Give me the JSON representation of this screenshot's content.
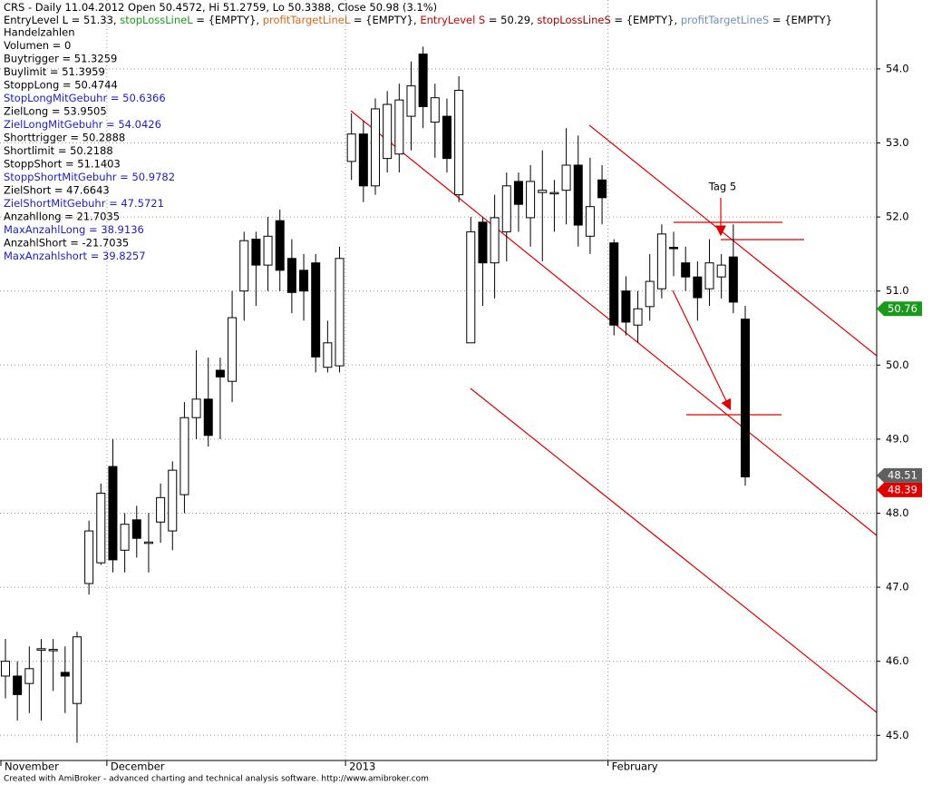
{
  "chart_data": {
    "type": "candlestick",
    "title_segments": [
      {
        "text": "CRS - Daily 11.04.2012 Open 50.4572, Hi 51.2759, Lo 50.3388, Close 50.98 (3.1%)",
        "color": "#000000"
      }
    ],
    "subtitle_segments": [
      {
        "text": "EntryLevel L = 51.33, ",
        "color": "#000000"
      },
      {
        "text": "stopLossLineL",
        "color": "#1a9a1a"
      },
      {
        "text": " = {EMPTY}, ",
        "color": "#000000"
      },
      {
        "text": "profitTargetLineL",
        "color": "#d2691e"
      },
      {
        "text": " = {EMPTY}, ",
        "color": "#000000"
      },
      {
        "text": "EntryLevel S",
        "color": "#cc0000"
      },
      {
        "text": " = 50.29, ",
        "color": "#000000"
      },
      {
        "text": "stopLossLineS",
        "color": "#a00000"
      },
      {
        "text": " = {EMPTY}, ",
        "color": "#000000"
      },
      {
        "text": "profitTargetLineS",
        "color": "#6f8fb8"
      },
      {
        "text": " = {EMPTY}",
        "color": "#000000"
      }
    ],
    "info_lines": [
      {
        "text": "Handelzahlen",
        "color": "#000000"
      },
      {
        "text": "Volumen = 0",
        "color": "#000000"
      },
      {
        "text": "Buytrigger = 51.3259",
        "color": "#000000"
      },
      {
        "text": "Buylimit = 51.3959",
        "color": "#000000"
      },
      {
        "text": "StoppLong = 50.4744",
        "color": "#000000"
      },
      {
        "text": "StopLongMitGebuhr = 50.6366",
        "color": "#1c1cc8"
      },
      {
        "text": "ZielLong = 53.9505",
        "color": "#000000"
      },
      {
        "text": "ZielLongMitGebuhr = 54.0426",
        "color": "#1c1cc8"
      },
      {
        "text": "Shorttrigger = 50.2888",
        "color": "#000000"
      },
      {
        "text": "Shortlimit = 50.2188",
        "color": "#000000"
      },
      {
        "text": "StoppShort = 51.1403",
        "color": "#000000"
      },
      {
        "text": "StoppShortMitGebuhr = 50.9782",
        "color": "#1c1cc8"
      },
      {
        "text": "ZielShort = 47.6643",
        "color": "#000000"
      },
      {
        "text": "ZielShortMitGebuhr = 47.5721",
        "color": "#1c1cc8"
      },
      {
        "text": "Anzahllong = 21.7035",
        "color": "#000000"
      },
      {
        "text": "MaxAnzahlLong = 38.9136",
        "color": "#1c1cc8"
      },
      {
        "text": "AnzahlShort = -21.7035",
        "color": "#000000"
      },
      {
        "text": "MaxAnzahlshort = 39.8257",
        "color": "#1c1cc8"
      }
    ],
    "annotation": "Tag 5",
    "footer": "Created with AmiBroker - advanced charting and technical analysis software. http://www.amibroker.com",
    "categories": [
      "November",
      null,
      null,
      null,
      null,
      null,
      null,
      null,
      null,
      "December",
      null,
      null,
      null,
      null,
      null,
      null,
      null,
      null,
      null,
      null,
      null,
      null,
      null,
      null,
      null,
      null,
      null,
      null,
      null,
      "2013",
      null,
      null,
      null,
      null,
      null,
      null,
      null,
      null,
      null,
      null,
      null,
      null,
      null,
      null,
      null,
      null,
      null,
      null,
      null,
      null,
      null,
      "February",
      null,
      null,
      null,
      null,
      null,
      null,
      null,
      null,
      null,
      null,
      null
    ],
    "open": [
      45.8,
      45.8,
      45.7,
      46.15,
      46.16,
      45.85,
      45.43,
      47.05,
      47.33,
      48.63,
      47.5,
      47.91,
      47.6,
      47.88,
      47.76,
      48.25,
      49.29,
      49.54,
      49.93,
      49.78,
      51.0,
      51.7,
      51.35,
      51.95,
      51.44,
      51.28,
      51.38,
      49.97,
      49.99,
      52.75,
      53.12,
      52.42,
      52.79,
      52.85,
      53.36,
      54.2,
      53.28,
      53.36,
      52.3,
      50.3,
      51.93,
      51.38,
      51.8,
      52.48,
      51.99,
      52.33,
      52.32,
      52.36,
      52.7,
      51.74,
      52.5,
      51.65,
      51.0,
      50.54,
      50.79,
      51.03,
      51.59,
      51.38,
      51.19,
      51.03,
      51.19,
      51.46,
      50.62
    ],
    "high": [
      46.3,
      46.0,
      46.2,
      46.3,
      46.3,
      46.2,
      46.4,
      47.9,
      48.4,
      49.0,
      48.0,
      48.1,
      48.0,
      48.4,
      48.7,
      49.5,
      50.2,
      50.1,
      50.1,
      51.0,
      51.8,
      51.8,
      52.0,
      52.1,
      51.7,
      51.5,
      51.5,
      50.6,
      51.6,
      53.4,
      53.3,
      53.6,
      53.7,
      53.8,
      54.1,
      54.3,
      53.8,
      53.6,
      53.9,
      52.0,
      52.0,
      52.3,
      52.6,
      52.6,
      52.7,
      52.9,
      52.5,
      53.2,
      53.1,
      52.8,
      52.7,
      51.7,
      51.2,
      51.0,
      51.5,
      51.9,
      51.8,
      51.6,
      51.4,
      51.7,
      51.5,
      51.9,
      50.8
    ],
    "low": [
      45.5,
      45.2,
      45.3,
      45.2,
      45.6,
      45.3,
      44.9,
      46.9,
      47.3,
      47.2,
      47.2,
      47.4,
      47.2,
      47.6,
      47.5,
      48.0,
      49.0,
      48.9,
      49.0,
      49.5,
      50.6,
      50.8,
      51.0,
      51.0,
      50.7,
      50.6,
      49.9,
      49.9,
      49.9,
      52.5,
      52.2,
      52.3,
      52.6,
      52.6,
      52.9,
      53.2,
      52.8,
      52.6,
      52.2,
      50.3,
      50.8,
      50.9,
      51.4,
      51.8,
      51.6,
      51.4,
      51.8,
      51.9,
      51.6,
      51.5,
      51.9,
      50.4,
      50.4,
      50.3,
      50.6,
      50.9,
      51.2,
      51.0,
      50.6,
      50.8,
      50.9,
      50.7,
      48.37
    ],
    "close": [
      46.0,
      45.55,
      45.9,
      46.17,
      46.16,
      45.8,
      46.33,
      47.76,
      48.27,
      47.37,
      47.85,
      47.66,
      47.61,
      48.21,
      48.58,
      49.29,
      49.54,
      49.05,
      49.84,
      50.64,
      51.68,
      51.35,
      51.74,
      51.28,
      50.98,
      51.0,
      50.11,
      50.3,
      51.44,
      53.12,
      52.42,
      53.46,
      53.52,
      53.58,
      53.77,
      53.49,
      53.61,
      52.79,
      53.71,
      51.8,
      51.38,
      51.99,
      52.42,
      52.17,
      52.48,
      52.36,
      52.33,
      52.7,
      51.89,
      52.14,
      52.26,
      50.54,
      50.58,
      50.76,
      51.13,
      51.77,
      51.58,
      51.19,
      50.91,
      51.38,
      51.35,
      50.85,
      48.49
    ],
    "up_color": "#ffffff",
    "down_color": "#000000",
    "ylim": [
      44.66,
      54.93
    ],
    "yticks": [
      {
        "value": 45,
        "label": "45.0"
      },
      {
        "value": 46,
        "label": "46.0"
      },
      {
        "value": 47,
        "label": "47.0"
      },
      {
        "value": 48,
        "label": "48.0"
      },
      {
        "value": 49,
        "label": "49.0"
      },
      {
        "value": 50,
        "label": "50.0"
      },
      {
        "value": 51,
        "label": "51.0"
      },
      {
        "value": 52,
        "label": "52.0"
      },
      {
        "value": 53,
        "label": "53.0"
      },
      {
        "value": 54,
        "label": "54.0"
      }
    ],
    "price_labels": [
      {
        "value": 50.76,
        "label": "50.76",
        "color": "#1a9a1a"
      },
      {
        "value": 48.51,
        "label": "48.51",
        "color": "#606060"
      },
      {
        "value": 48.39,
        "label": "48.39",
        "color": "#e00000"
      }
    ],
    "grid": true
  }
}
